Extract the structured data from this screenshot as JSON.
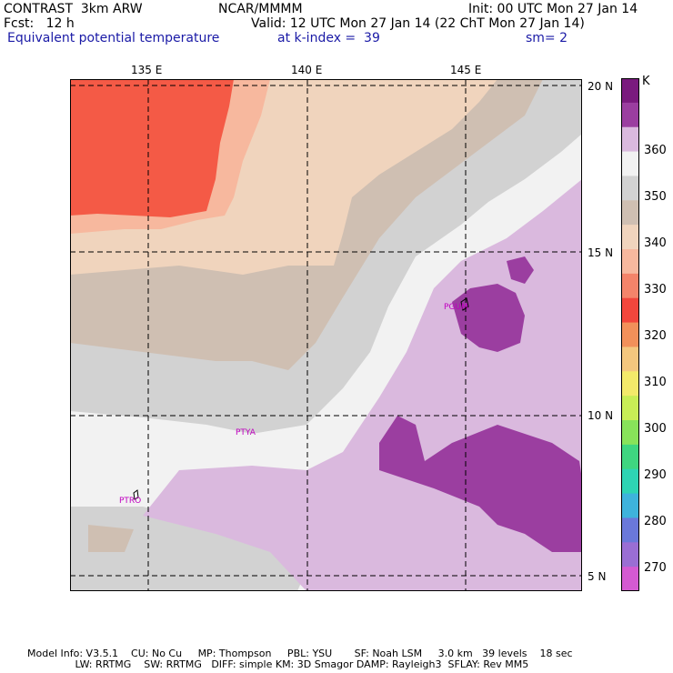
{
  "header": {
    "model": "CONTRAST  3km ARW",
    "org": "NCAR/MMMM",
    "init": "Init: 00 UTC Mon 27 Jan 14",
    "fcst": "Fcst:   12 h",
    "valid": "Valid: 12 UTC Mon 27 Jan 14 (22 ChT Mon 27 Jan 14)",
    "field": "Equivalent potential temperature",
    "kindex": "at k-index =  39",
    "smooth": "sm= 2"
  },
  "map": {
    "lon_labels": [
      "135 E",
      "140 E",
      "145 E"
    ],
    "lat_labels": [
      "20 N",
      "15 N",
      "10 N",
      "5 N"
    ],
    "stations": [
      "PGUM",
      "PTYA",
      "PTRO"
    ]
  },
  "legend": {
    "unit": "K",
    "labels": [
      "360",
      "350",
      "340",
      "330",
      "320",
      "310",
      "300",
      "290",
      "280",
      "270"
    ],
    "colors": [
      "#7a1a7e",
      "#9b3ea0",
      "#dab9de",
      "#f2f2f2",
      "#d2d2d2",
      "#cfbfb2",
      "#f0d4bd",
      "#f7b89e",
      "#f4846a",
      "#f2463c",
      "#f2905a",
      "#f4c77e",
      "#f3ea6a",
      "#c8ee56",
      "#88e35a",
      "#3fd680",
      "#2ed4b4",
      "#3eb3dc",
      "#6a78da",
      "#9a6ed4",
      "#d45ad2"
    ]
  },
  "footer": {
    "line1": "Model Info: V3.5.1    CU: No Cu     MP: Thompson     PBL: YSU       SF: Noah LSM     3.0 km   39 levels    18 sec",
    "line2": "               LW: RRTMG    SW: RRTMG   DIFF: simple KM: 3D Smagor DAMP: Rayleigh3  SFLAY: Rev MM5"
  }
}
